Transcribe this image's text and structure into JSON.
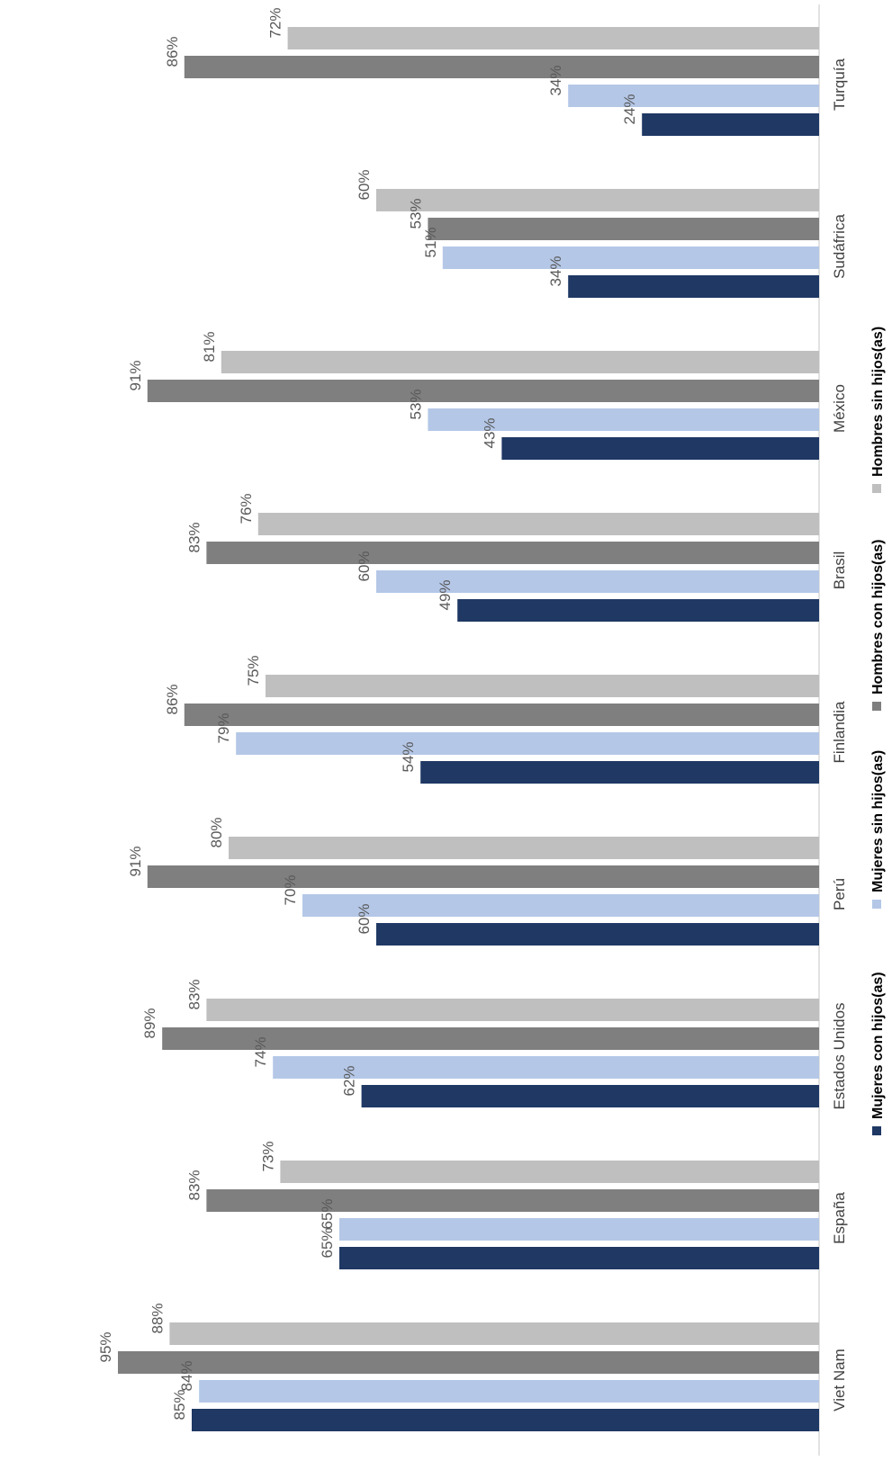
{
  "chart_data": {
    "type": "bar",
    "orientation": "horizontal",
    "categories": [
      "Turquía",
      "Sudáfrica",
      "México",
      "Brasil",
      "Finlandia",
      "Perú",
      "Estados Unidos",
      "España",
      "Viet Nam"
    ],
    "series": [
      {
        "name": "Mujeres con hijos(as)",
        "color": "#1F3864",
        "values": [
          24,
          34,
          43,
          49,
          54,
          60,
          62,
          65,
          85
        ]
      },
      {
        "name": "Mujeres sin hijos(as)",
        "color": "#B4C7E7",
        "values": [
          34,
          51,
          53,
          60,
          79,
          70,
          74,
          65,
          84
        ]
      },
      {
        "name": "Hombres con hijos(as)",
        "color": "#7F7F7F",
        "values": [
          86,
          53,
          91,
          83,
          86,
          91,
          89,
          83,
          95
        ]
      },
      {
        "name": "Hombres sin hijos(as)",
        "color": "#BFBFBF",
        "values": [
          72,
          60,
          81,
          76,
          75,
          80,
          83,
          73,
          88
        ]
      }
    ],
    "value_suffix": "%",
    "xlim": [
      0,
      100
    ],
    "grid": false,
    "legend_position": "bottom",
    "title": "",
    "xlabel": "",
    "ylabel": ""
  }
}
